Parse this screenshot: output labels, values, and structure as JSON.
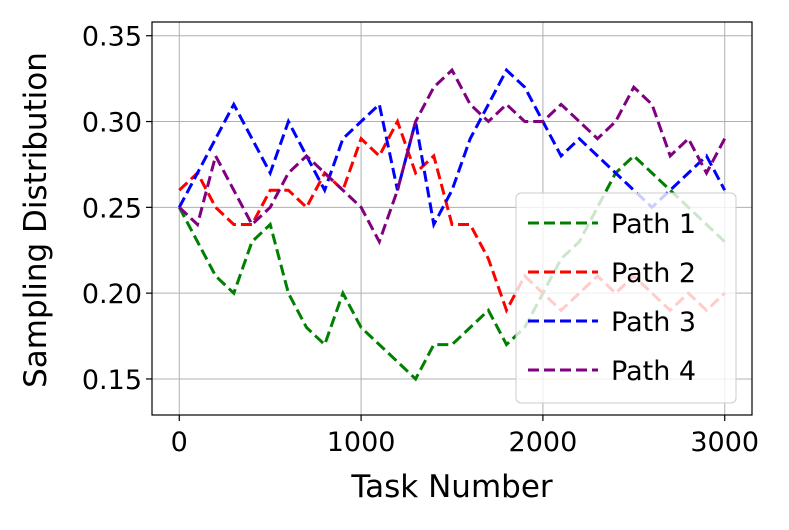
{
  "chart_data": {
    "type": "line",
    "xlabel": "Task Number",
    "ylabel": "Sampling Distribution",
    "x": [
      0,
      100,
      200,
      300,
      400,
      500,
      600,
      700,
      800,
      900,
      1000,
      1100,
      1200,
      1300,
      1400,
      1500,
      1600,
      1700,
      1800,
      1900,
      2000,
      2100,
      2200,
      2300,
      2400,
      2500,
      2600,
      2700,
      2800,
      2900,
      3000
    ],
    "series": [
      {
        "name": "Path 1",
        "color": "#008000",
        "values": [
          0.25,
          0.23,
          0.21,
          0.2,
          0.23,
          0.24,
          0.2,
          0.18,
          0.17,
          0.2,
          0.18,
          0.17,
          0.16,
          0.15,
          0.17,
          0.17,
          0.18,
          0.19,
          0.17,
          0.18,
          0.2,
          0.22,
          0.23,
          0.25,
          0.27,
          0.28,
          0.27,
          0.26,
          0.25,
          0.24,
          0.23
        ]
      },
      {
        "name": "Path 2",
        "color": "#ff0000",
        "values": [
          0.26,
          0.27,
          0.25,
          0.24,
          0.24,
          0.26,
          0.26,
          0.25,
          0.27,
          0.26,
          0.29,
          0.28,
          0.3,
          0.27,
          0.28,
          0.24,
          0.24,
          0.22,
          0.19,
          0.21,
          0.2,
          0.19,
          0.2,
          0.21,
          0.2,
          0.21,
          0.2,
          0.19,
          0.2,
          0.19,
          0.2
        ]
      },
      {
        "name": "Path 3",
        "color": "#0000ff",
        "values": [
          0.25,
          0.27,
          0.29,
          0.31,
          0.29,
          0.27,
          0.3,
          0.28,
          0.26,
          0.29,
          0.3,
          0.31,
          0.26,
          0.3,
          0.24,
          0.26,
          0.29,
          0.31,
          0.33,
          0.32,
          0.3,
          0.28,
          0.29,
          0.28,
          0.27,
          0.26,
          0.25,
          0.26,
          0.27,
          0.28,
          0.26
        ]
      },
      {
        "name": "Path 4",
        "color": "#800080",
        "values": [
          0.25,
          0.24,
          0.28,
          0.26,
          0.24,
          0.25,
          0.27,
          0.28,
          0.27,
          0.26,
          0.25,
          0.23,
          0.26,
          0.3,
          0.32,
          0.33,
          0.31,
          0.3,
          0.31,
          0.3,
          0.3,
          0.31,
          0.3,
          0.29,
          0.3,
          0.32,
          0.31,
          0.28,
          0.29,
          0.27,
          0.29
        ]
      }
    ],
    "xlim": [
      -150,
      3150
    ],
    "ylim": [
      0.129,
      0.358
    ],
    "xticks": [
      0,
      1000,
      2000,
      3000
    ],
    "yticks": [
      0.15,
      {
        "value": 0.2,
        "label": "0.20"
      },
      0.25,
      {
        "value": 0.3,
        "label": "0.30"
      },
      0.35
    ],
    "grid": true,
    "legend": "lower right"
  }
}
